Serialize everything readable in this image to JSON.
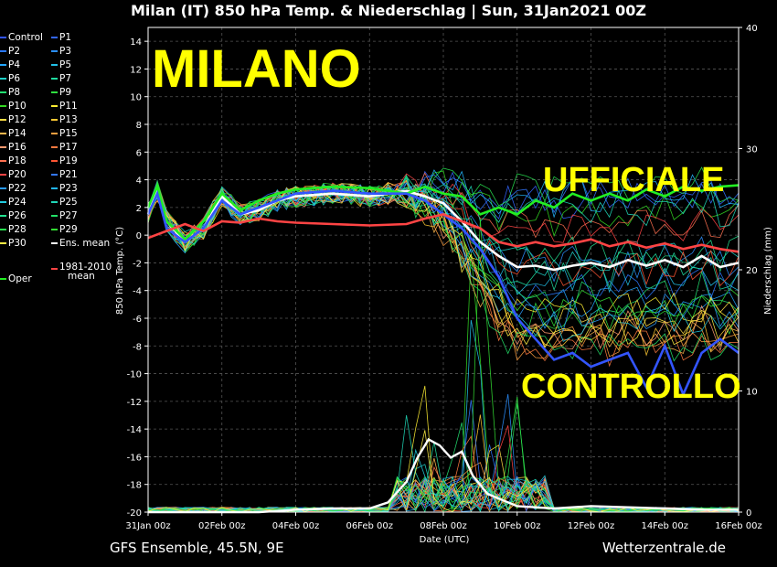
{
  "header": {
    "title": "Milan  (IT)  850 hPa Temp. & Niederschlag | Sun, 31Jan2021 00Z"
  },
  "footer": {
    "left": "GFS Ensemble, 45.5N, 9E",
    "right": "Wetterzentrale.de"
  },
  "overlays": {
    "city": "MILANO",
    "official": "UFFICIALE",
    "control": "CONTROLLO"
  },
  "legend": [
    {
      "label": "Control",
      "color": "#3355ff"
    },
    {
      "label": "P1",
      "color": "#3366ff"
    },
    {
      "label": "P2",
      "color": "#2a78ff"
    },
    {
      "label": "P3",
      "color": "#2b90ff"
    },
    {
      "label": "P4",
      "color": "#22a6ff"
    },
    {
      "label": "P5",
      "color": "#22c0e8"
    },
    {
      "label": "P6",
      "color": "#1fd0c8"
    },
    {
      "label": "P7",
      "color": "#1fdca0"
    },
    {
      "label": "P8",
      "color": "#22e070"
    },
    {
      "label": "P9",
      "color": "#30e040"
    },
    {
      "label": "P10",
      "color": "#33d822"
    },
    {
      "label": "P11",
      "color": "#ffee33"
    },
    {
      "label": "P12",
      "color": "#ffdd44"
    },
    {
      "label": "P13",
      "color": "#ffc933"
    },
    {
      "label": "P14",
      "color": "#ffb84d"
    },
    {
      "label": "P15",
      "color": "#ffa040"
    },
    {
      "label": "P16",
      "color": "#ff9a70"
    },
    {
      "label": "P17",
      "color": "#ff7a40"
    },
    {
      "label": "P18",
      "color": "#ff7050"
    },
    {
      "label": "P19",
      "color": "#ff5533"
    },
    {
      "label": "P20",
      "color": "#ff4444"
    },
    {
      "label": "P21",
      "color": "#3377ff"
    },
    {
      "label": "P22",
      "color": "#2a9cff"
    },
    {
      "label": "P23",
      "color": "#22b8ff"
    },
    {
      "label": "P24",
      "color": "#22cce0"
    },
    {
      "label": "P25",
      "color": "#20d8b8"
    },
    {
      "label": "P26",
      "color": "#22e090"
    },
    {
      "label": "P27",
      "color": "#22e068"
    },
    {
      "label": "P28",
      "color": "#28e050"
    },
    {
      "label": "P29",
      "color": "#33dd33"
    },
    {
      "label": "P30",
      "color": "#ffee44"
    },
    {
      "label": "Ens. mean",
      "color": "#ffffff"
    },
    {
      "label": "Oper",
      "color": "#22ee22"
    },
    {
      "label": "1981-2010 mean",
      "color": "#ff4444"
    }
  ],
  "chart_data": {
    "type": "line",
    "xlabel": "Date (UTC)",
    "ylabel": "850 hPa Temp. (°C)",
    "y2label": "Niederschlag (mm)",
    "xticks": [
      "31Jan 00z",
      "02Feb 00z",
      "04Feb 00z",
      "06Feb 00z",
      "08Feb 00z",
      "10Feb 00z",
      "12Feb 00z",
      "14Feb 00z",
      "16Feb 00z"
    ],
    "xlim_days": [
      0,
      16
    ],
    "ylim": [
      -20,
      15
    ],
    "yticks": [
      14,
      12,
      10,
      8,
      6,
      4,
      2,
      0,
      -2,
      -4,
      -6,
      -8,
      -10,
      -12,
      -14,
      -16,
      -18,
      -20
    ],
    "y2lim": [
      0,
      40
    ],
    "y2ticks": [
      40,
      30,
      20,
      10,
      0
    ],
    "grid": true,
    "series": [
      {
        "name": "Ens. mean",
        "color": "#ffffff",
        "x": [
          0,
          0.25,
          0.5,
          1,
          1.5,
          2,
          2.5,
          3,
          3.5,
          4,
          5,
          6,
          7,
          7.5,
          8,
          8.5,
          9,
          9.5,
          10,
          10.5,
          11,
          11.5,
          12,
          12.5,
          13,
          13.5,
          14,
          14.5,
          15,
          15.5,
          16
        ],
        "y": [
          1.5,
          3.2,
          1.0,
          -0.5,
          0.5,
          2.8,
          1.5,
          1.8,
          2.5,
          2.8,
          3.0,
          2.8,
          3.2,
          2.8,
          2.3,
          1.0,
          -0.5,
          -1.5,
          -2.3,
          -2.2,
          -2.5,
          -2.2,
          -2.0,
          -2.3,
          -1.8,
          -2.2,
          -1.8,
          -2.3,
          -1.5,
          -2.3,
          -2.0
        ]
      },
      {
        "name": "Oper",
        "color": "#22ee22",
        "x": [
          0,
          0.25,
          0.5,
          1,
          1.5,
          2,
          2.5,
          3,
          3.5,
          4,
          5,
          6,
          7,
          7.5,
          8,
          8.5,
          9,
          9.5,
          10,
          10.5,
          11,
          11.5,
          12,
          12.5,
          13,
          13.5,
          14,
          14.5,
          15,
          15.5,
          16
        ],
        "y": [
          2.0,
          3.5,
          1.0,
          -0.3,
          1.0,
          3.0,
          1.8,
          2.5,
          3.0,
          3.3,
          3.5,
          3.4,
          3.0,
          3.5,
          3.0,
          2.8,
          1.5,
          2.0,
          1.5,
          2.5,
          2.0,
          3.0,
          2.5,
          3.0,
          2.5,
          3.3,
          2.8,
          3.5,
          3.2,
          3.5,
          3.6
        ]
      },
      {
        "name": "Control",
        "color": "#3355ff",
        "x": [
          0,
          0.25,
          0.5,
          1,
          1.5,
          2,
          2.5,
          3,
          3.5,
          4,
          5,
          6,
          7,
          7.5,
          8,
          8.5,
          9,
          9.5,
          10,
          10.5,
          11,
          11.5,
          12,
          12.5,
          13,
          13.5,
          14,
          14.5,
          15,
          15.5,
          16
        ],
        "y": [
          1.5,
          3.0,
          0.5,
          -0.5,
          0.5,
          2.5,
          1.5,
          2.0,
          2.5,
          3.0,
          3.2,
          3.0,
          3.0,
          2.5,
          1.5,
          0.5,
          -1.0,
          -3.0,
          -6.0,
          -7.5,
          -9.0,
          -8.5,
          -9.5,
          -9.0,
          -8.5,
          -11.0,
          -8.0,
          -11.5,
          -8.5,
          -7.5,
          -8.5
        ]
      },
      {
        "name": "1981-2010 mean",
        "color": "#ff4444",
        "x": [
          0,
          0.5,
          1,
          1.5,
          2,
          2.5,
          3,
          3.5,
          4,
          5,
          6,
          7,
          7.5,
          8,
          8.5,
          9,
          9.5,
          10,
          10.5,
          11,
          11.5,
          12,
          12.5,
          13,
          13.5,
          14,
          14.5,
          15,
          15.5,
          16
        ],
        "y": [
          -0.2,
          0.3,
          0.8,
          0.3,
          1.0,
          0.9,
          1.2,
          1.0,
          0.9,
          0.8,
          0.7,
          0.8,
          1.2,
          1.5,
          1.0,
          0.5,
          -0.5,
          -0.8,
          -0.5,
          -0.8,
          -0.6,
          -0.3,
          -0.8,
          -0.5,
          -0.9,
          -0.6,
          -1.0,
          -0.7,
          -1.0,
          -1.2
        ]
      }
    ],
    "precip_series": [
      {
        "name": "Ens. mean precip",
        "color": "#ffffff",
        "x": [
          0,
          1,
          2,
          3,
          4,
          5,
          6,
          6.5,
          7,
          7.3,
          7.6,
          7.9,
          8.2,
          8.5,
          8.8,
          9.2,
          9.6,
          10,
          11,
          12,
          13,
          14,
          15,
          16
        ],
        "y": [
          0,
          0,
          0,
          0,
          0.2,
          0.3,
          0.3,
          0.8,
          2.5,
          4.5,
          6.0,
          5.5,
          4.5,
          5.0,
          3.0,
          1.5,
          1.0,
          0.5,
          0.3,
          0.5,
          0.4,
          0.3,
          0.2,
          0.2
        ]
      }
    ]
  }
}
